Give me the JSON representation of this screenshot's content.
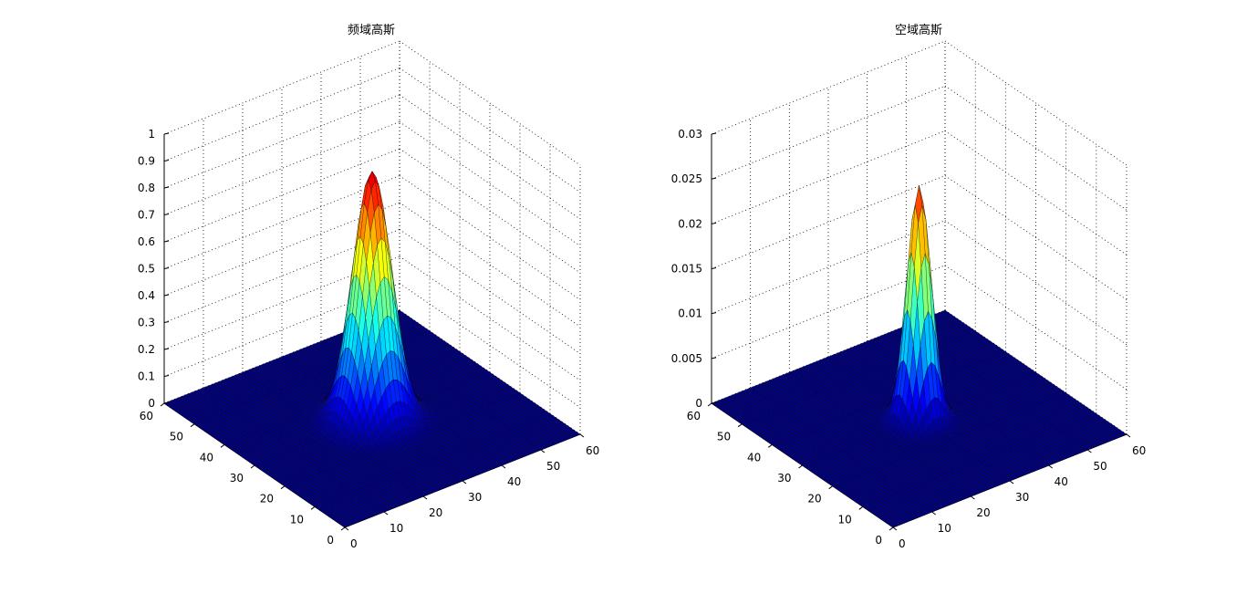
{
  "chart_data": [
    {
      "type": "surface",
      "title": "频域高斯",
      "xlabel": "",
      "ylabel": "",
      "zlabel": "",
      "x_range": [
        0,
        60
      ],
      "y_range": [
        0,
        60
      ],
      "zlim": [
        0,
        1
      ],
      "x_ticks": [
        0,
        10,
        20,
        30,
        40,
        50,
        60
      ],
      "y_ticks": [
        0,
        10,
        20,
        30,
        40,
        50,
        60
      ],
      "z_ticks": [
        0,
        0.1,
        0.2,
        0.3,
        0.4,
        0.5,
        0.6,
        0.7,
        0.8,
        0.9,
        1
      ],
      "z_tick_labels": [
        "0",
        "0.1",
        "0.2",
        "0.3",
        "0.4",
        "0.5",
        "0.6",
        "0.7",
        "0.8",
        "0.9",
        "1"
      ],
      "grid": true,
      "colormap": "jet",
      "surface": {
        "function": "gaussian",
        "grid_points": 61,
        "center": [
          30,
          30
        ],
        "sigma": 4,
        "peak": 0.92
      }
    },
    {
      "type": "surface",
      "title": "空域高斯",
      "xlabel": "",
      "ylabel": "",
      "zlabel": "",
      "x_range": [
        0,
        60
      ],
      "y_range": [
        0,
        60
      ],
      "zlim": [
        0,
        0.03
      ],
      "x_ticks": [
        0,
        10,
        20,
        30,
        40,
        50,
        60
      ],
      "y_ticks": [
        0,
        10,
        20,
        30,
        40,
        50,
        60
      ],
      "z_ticks": [
        0,
        0.005,
        0.01,
        0.015,
        0.02,
        0.025,
        0.03
      ],
      "z_tick_labels": [
        "0",
        "0.005",
        "0.01",
        "0.015",
        "0.02",
        "0.025",
        "0.03"
      ],
      "grid": true,
      "colormap": "jet",
      "surface": {
        "function": "gaussian",
        "grid_points": 61,
        "center": [
          30,
          30
        ],
        "sigma": 2.5,
        "peak": 0.026
      }
    }
  ]
}
